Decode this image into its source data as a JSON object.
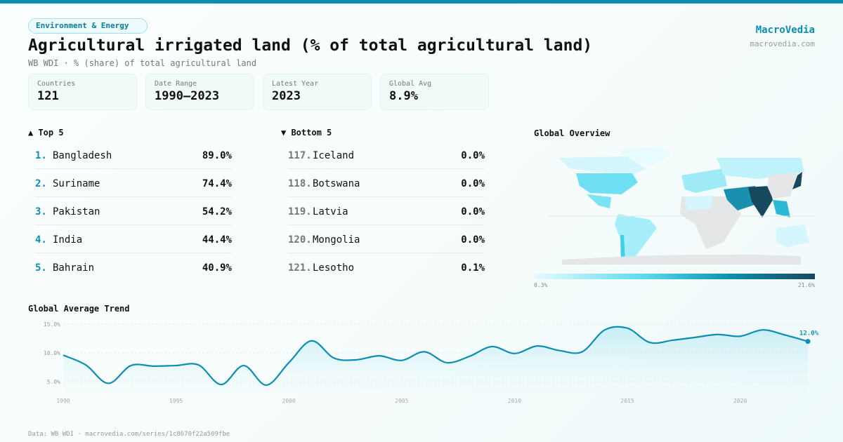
{
  "header": {
    "category": "Environment & Energy",
    "title": "Agricultural irrigated land (% of total agricultural land)",
    "subtitle": "WB WDI · % (share) of total agricultural land",
    "brand": "MacroVedia",
    "brand_url": "macrovedia.com"
  },
  "stats": [
    {
      "label": "Countries",
      "value": "121"
    },
    {
      "label": "Date Range",
      "value": "1990–2023"
    },
    {
      "label": "Latest Year",
      "value": "2023"
    },
    {
      "label": "Global Avg",
      "value": "8.9%"
    }
  ],
  "top5": {
    "title": "▲ Top 5",
    "items": [
      {
        "rank": "1.",
        "name": "Bangladesh",
        "value": "89.0%"
      },
      {
        "rank": "2.",
        "name": "Suriname",
        "value": "74.4%"
      },
      {
        "rank": "3.",
        "name": "Pakistan",
        "value": "54.2%"
      },
      {
        "rank": "4.",
        "name": "India",
        "value": "44.4%"
      },
      {
        "rank": "5.",
        "name": "Bahrain",
        "value": "40.9%"
      }
    ]
  },
  "bottom5": {
    "title": "▼ Bottom 5",
    "items": [
      {
        "rank": "117.",
        "name": "Iceland",
        "value": "0.0%"
      },
      {
        "rank": "118.",
        "name": "Botswana",
        "value": "0.0%"
      },
      {
        "rank": "119.",
        "name": "Latvia",
        "value": "0.0%"
      },
      {
        "rank": "120.",
        "name": "Mongolia",
        "value": "0.0%"
      },
      {
        "rank": "121.",
        "name": "Lesotho",
        "value": "0.1%"
      }
    ]
  },
  "map": {
    "title": "Global Overview",
    "legend_min": "0.3%",
    "legend_max": "21.6%",
    "colors": {
      "low": "#e8fbfe",
      "mid": "#5ad8ee",
      "high": "#17485e",
      "nodata": "#e4e6e8"
    }
  },
  "trend_title": "Global Average Trend",
  "chart_data": {
    "type": "area",
    "title": "Global Average Trend",
    "xlabel": "",
    "ylabel": "",
    "grid": true,
    "x": [
      1990,
      1991,
      1992,
      1993,
      1994,
      1995,
      1996,
      1997,
      1998,
      1999,
      2000,
      2001,
      2002,
      2003,
      2004,
      2005,
      2006,
      2007,
      2008,
      2009,
      2010,
      2011,
      2012,
      2013,
      2014,
      2015,
      2016,
      2017,
      2018,
      2019,
      2020,
      2021,
      2022,
      2023
    ],
    "y": [
      9.6,
      7.9,
      4.7,
      7.8,
      7.7,
      7.8,
      7.9,
      4.5,
      7.8,
      4.4,
      8.3,
      12.1,
      9.1,
      8.8,
      9.5,
      8.7,
      10.2,
      8.3,
      9.4,
      11.1,
      9.9,
      11.2,
      10.4,
      10.2,
      14.0,
      14.3,
      11.8,
      12.2,
      12.7,
      13.2,
      12.9,
      14.0,
      13.1,
      12.0
    ],
    "y_ticks": [
      "5.0%",
      "10.0%",
      "15.0%"
    ],
    "x_ticks": [
      "1990",
      "1995",
      "2000",
      "2005",
      "2010",
      "2015",
      "2020"
    ],
    "last_label": "12.0%",
    "color": "#0a8fb2"
  },
  "footer": "Data: WB WDI · macrovedia.com/series/1c8670f22a509fbe"
}
